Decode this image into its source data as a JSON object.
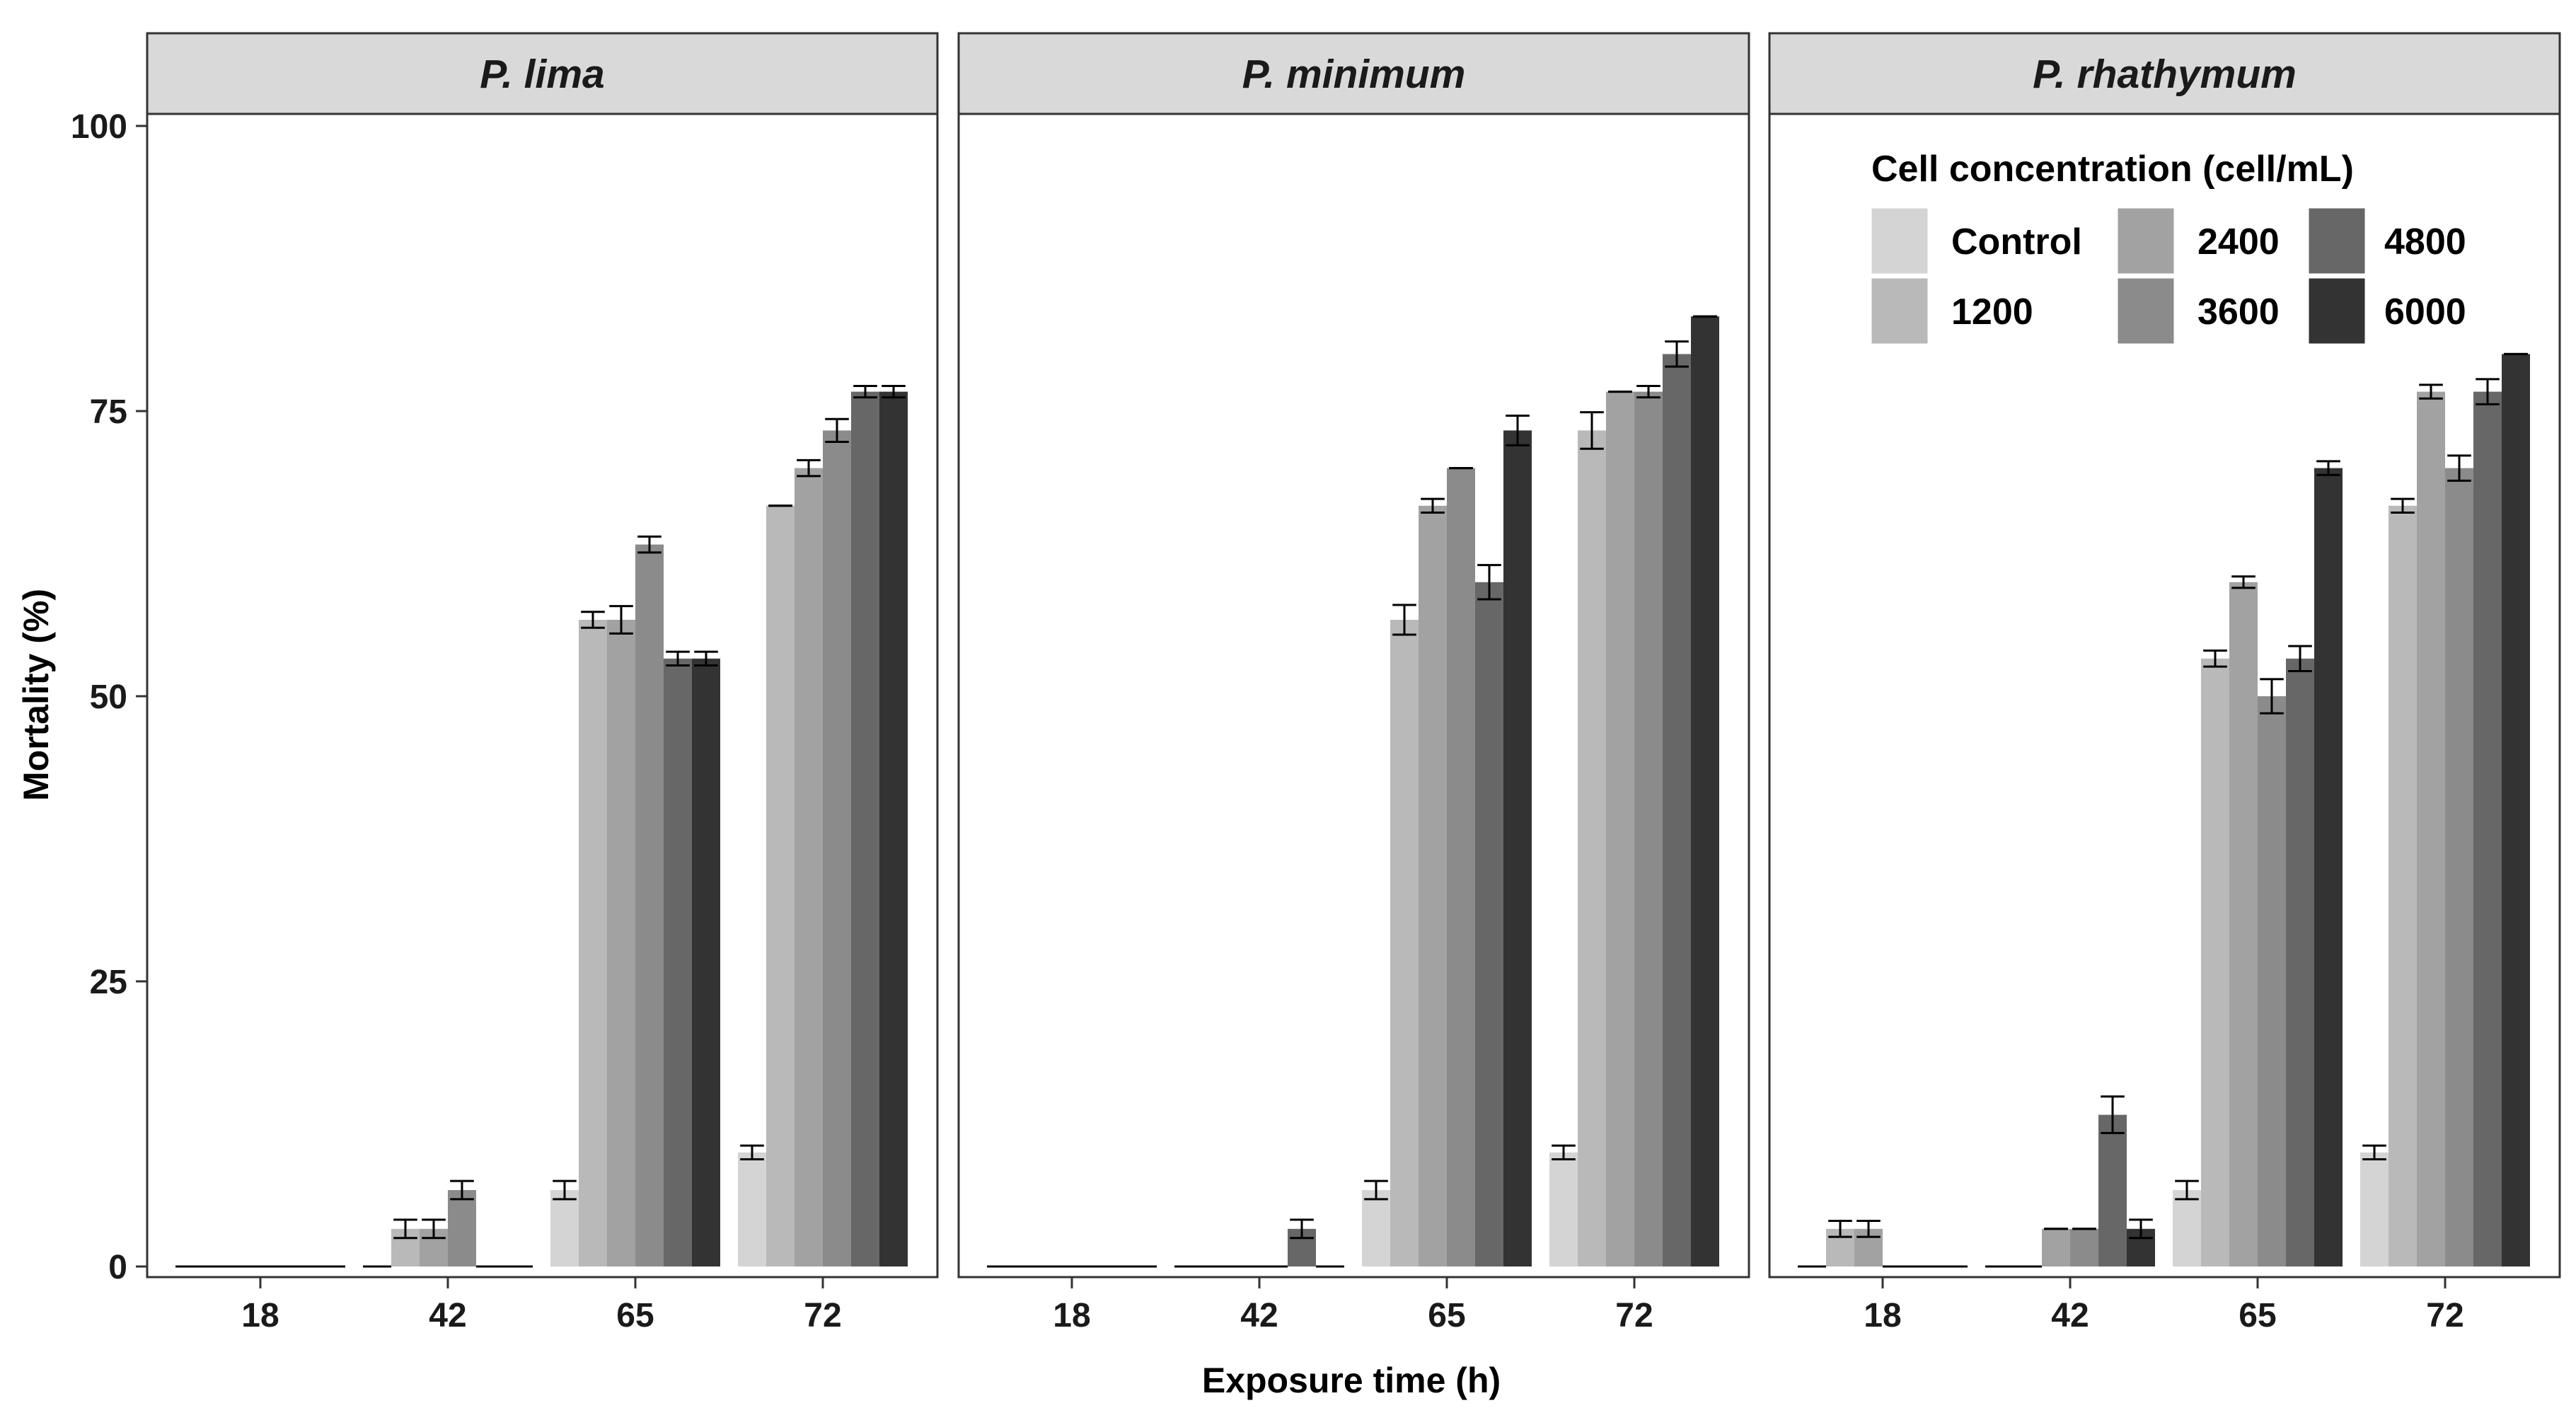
{
  "chart_data": {
    "type": "bar",
    "xlabel": "Exposure time (h)",
    "ylabel": "Mortality (%)",
    "ylim": [
      0,
      100
    ],
    "yticks": [
      "0",
      "25",
      "50",
      "75",
      "100"
    ],
    "categories": [
      "18",
      "42",
      "65",
      "72"
    ],
    "legend": {
      "title": "Cell concentration (cell/mL)",
      "position": "top-right of third panel",
      "entries": [
        {
          "label": "Control",
          "color": "#d4d4d4"
        },
        {
          "label": "1200",
          "color": "#b9b9b9"
        },
        {
          "label": "2400",
          "color": "#a2a2a2"
        },
        {
          "label": "3600",
          "color": "#8b8b8b"
        },
        {
          "label": "4800",
          "color": "#676767"
        },
        {
          "label": "6000",
          "color": "#333333"
        }
      ]
    },
    "panels": [
      {
        "title": "P. lima",
        "series": [
          {
            "name": "Control",
            "values": [
              0,
              0,
              6.7,
              10
            ],
            "errors": [
              0,
              0,
              0.8,
              0.6
            ]
          },
          {
            "name": "1200",
            "values": [
              0,
              3.3,
              56.7,
              66.7
            ],
            "errors": [
              0,
              0.8,
              0.7,
              0
            ]
          },
          {
            "name": "2400",
            "values": [
              0,
              3.3,
              56.7,
              70
            ],
            "errors": [
              0,
              0.8,
              1.2,
              0.7
            ]
          },
          {
            "name": "3600",
            "values": [
              0,
              6.7,
              63.3,
              73.3
            ],
            "errors": [
              0,
              0.8,
              0.7,
              1.0
            ]
          },
          {
            "name": "4800",
            "values": [
              0,
              0,
              53.3,
              76.7
            ],
            "errors": [
              0,
              0,
              0.6,
              0.5
            ]
          },
          {
            "name": "6000",
            "values": [
              0,
              0,
              53.3,
              76.7
            ],
            "errors": [
              0,
              0,
              0.6,
              0.5
            ]
          }
        ]
      },
      {
        "title": "P. minimum",
        "series": [
          {
            "name": "Control",
            "values": [
              0,
              0,
              6.7,
              10
            ],
            "errors": [
              0,
              0,
              0.8,
              0.6
            ]
          },
          {
            "name": "1200",
            "values": [
              0,
              0,
              56.7,
              73.3
            ],
            "errors": [
              0,
              0,
              1.3,
              1.6
            ]
          },
          {
            "name": "2400",
            "values": [
              0,
              0,
              66.7,
              76.7
            ],
            "errors": [
              0,
              0,
              0.6,
              0
            ]
          },
          {
            "name": "3600",
            "values": [
              0,
              0,
              70,
              76.7
            ],
            "errors": [
              0,
              0,
              0,
              0.5
            ]
          },
          {
            "name": "4800",
            "values": [
              0,
              3.3,
              60,
              80
            ],
            "errors": [
              0,
              0.8,
              1.5,
              1.1
            ]
          },
          {
            "name": "6000",
            "values": [
              0,
              0,
              73.3,
              83.3
            ],
            "errors": [
              0,
              0,
              1.3,
              0
            ]
          }
        ]
      },
      {
        "title": "P. rhathymum",
        "series": [
          {
            "name": "Control",
            "values": [
              0,
              0,
              6.7,
              10
            ],
            "errors": [
              0,
              0,
              0.8,
              0.6
            ]
          },
          {
            "name": "1200",
            "values": [
              3.3,
              0,
              53.3,
              66.7
            ],
            "errors": [
              0.7,
              0,
              0.7,
              0.6
            ]
          },
          {
            "name": "2400",
            "values": [
              3.3,
              3.3,
              60,
              76.7
            ],
            "errors": [
              0.7,
              0,
              0.5,
              0.6
            ]
          },
          {
            "name": "3600",
            "values": [
              0,
              3.3,
              50,
              70
            ],
            "errors": [
              0,
              0,
              1.5,
              1.1
            ]
          },
          {
            "name": "4800",
            "values": [
              0,
              13.3,
              53.3,
              76.7
            ],
            "errors": [
              0,
              1.6,
              1.1,
              1.1
            ]
          },
          {
            "name": "6000",
            "values": [
              0,
              3.3,
              70,
              80
            ],
            "errors": [
              0,
              0.8,
              0.6,
              0
            ]
          }
        ]
      }
    ]
  }
}
